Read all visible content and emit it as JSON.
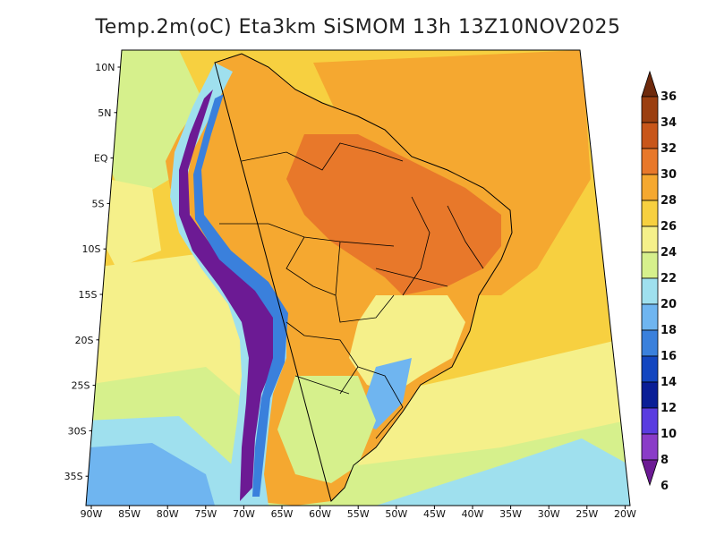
{
  "title": "Temp.2m(oC) Eta3km SiSMOM 13h 13Z10NOV2025",
  "lat_labels": [
    "10N",
    "5N",
    "EQ",
    "5S",
    "10S",
    "15S",
    "20S",
    "25S",
    "30S",
    "35S"
  ],
  "lon_labels": [
    "90W",
    "85W",
    "80W",
    "75W",
    "70W",
    "65W",
    "60W",
    "55W",
    "50W",
    "45W",
    "40W",
    "35W",
    "30W",
    "25W",
    "20W"
  ],
  "colorbar": {
    "labels": [
      "36",
      "34",
      "32",
      "30",
      "28",
      "26",
      "24",
      "22",
      "20",
      "18",
      "16",
      "14",
      "12",
      "10",
      "8",
      "6"
    ],
    "colors": [
      "#6e2a0c",
      "#9b3f10",
      "#c8561a",
      "#e8782a",
      "#f5a830",
      "#f7d040",
      "#f5f08a",
      "#d6f08c",
      "#9fe0ee",
      "#6fb5f0",
      "#3a80dc",
      "#1346c0",
      "#0a1e96",
      "#5a3ce0",
      "#8a3cc8",
      "#6c1a94"
    ]
  },
  "legend": {
    "colors": {
      "ocean_n": "#f7d040",
      "ocean_warm": "#f5a830",
      "ocean_s": "#f5f08a",
      "ocean_cold": "#9fe0ee",
      "land_hot": "#e8782a",
      "land_warm": "#f5a830",
      "andes": "#6c1a94",
      "border": "#000000"
    }
  }
}
